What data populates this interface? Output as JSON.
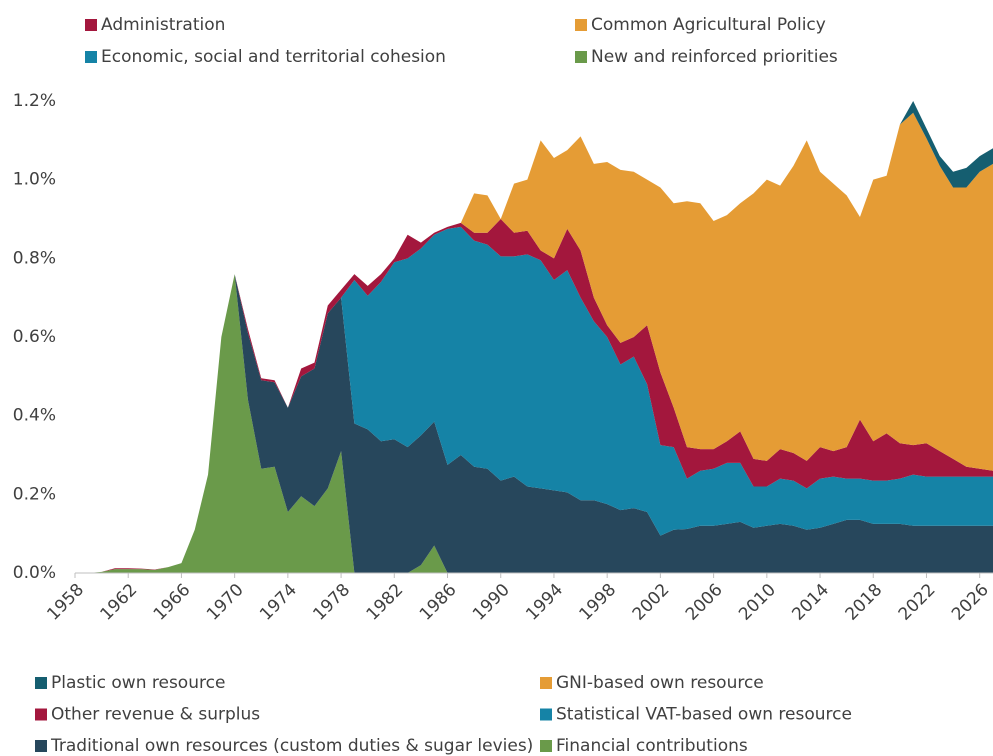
{
  "chart_data": {
    "type": "stacked_area",
    "top_legend": [
      {
        "name": "Administration",
        "color": "#a3173d"
      },
      {
        "name": "Common Agricultural Policy",
        "color": "#e59c35"
      },
      {
        "name": "Economic, social and territorial cohesion",
        "color": "#1583a6"
      },
      {
        "name": "New and reinforced priorities",
        "color": "#6a9a4a"
      }
    ],
    "x": [
      1958,
      1959,
      1960,
      1961,
      1962,
      1963,
      1964,
      1965,
      1966,
      1967,
      1968,
      1969,
      1970,
      1971,
      1972,
      1973,
      1974,
      1975,
      1976,
      1977,
      1978,
      1979,
      1980,
      1981,
      1982,
      1983,
      1984,
      1985,
      1986,
      1987,
      1988,
      1989,
      1990,
      1991,
      1992,
      1993,
      1994,
      1995,
      1996,
      1997,
      1998,
      1999,
      2000,
      2001,
      2002,
      2003,
      2004,
      2005,
      2006,
      2007,
      2008,
      2009,
      2010,
      2011,
      2012,
      2013,
      2014,
      2015,
      2016,
      2017,
      2018,
      2019,
      2020,
      2021,
      2022,
      2023,
      2024,
      2025,
      2026,
      2027
    ],
    "xlim": [
      1958,
      2027
    ],
    "xticks": [
      1958,
      1962,
      1966,
      1970,
      1974,
      1978,
      1982,
      1986,
      1990,
      1994,
      1998,
      2002,
      2006,
      2010,
      2014,
      2018,
      2022,
      2026
    ],
    "ylim": [
      0,
      1.2
    ],
    "yticks": [
      {
        "value": 0,
        "label": "0.0%"
      },
      {
        "value": 0.2,
        "label": "0.2%"
      },
      {
        "value": 0.4,
        "label": "0.4%"
      },
      {
        "value": 0.6,
        "label": "0.6%"
      },
      {
        "value": 0.8,
        "label": "0.8%"
      },
      {
        "value": 1.0,
        "label": "1.0%"
      },
      {
        "value": 1.2,
        "label": "1.2%"
      }
    ],
    "series": [
      {
        "name": "Financial contributions",
        "color": "#6a9a4a",
        "values": [
          0,
          0,
          0.003,
          0.01,
          0.01,
          0.01,
          0.008,
          0.015,
          0.025,
          0.11,
          0.25,
          0.6,
          0.76,
          0.44,
          0.265,
          0.27,
          0.155,
          0.195,
          0.17,
          0.215,
          0.31,
          0,
          0,
          0,
          0,
          0,
          0.02,
          0.07,
          0,
          0,
          0,
          0,
          0,
          0,
          0,
          0,
          0,
          0,
          0,
          0,
          0,
          0,
          0,
          0,
          0,
          0,
          0,
          0,
          0,
          0,
          0,
          0,
          0,
          0,
          0,
          0,
          0,
          0,
          0,
          0,
          0,
          0,
          0,
          0,
          0,
          0,
          0,
          0,
          0,
          0
        ]
      },
      {
        "name": "Traditional own resources (custom duties & sugar levies)",
        "color": "#27475c",
        "values": [
          0,
          0,
          0,
          0,
          0,
          0,
          0,
          0,
          0,
          0,
          0,
          0,
          0,
          0.17,
          0.225,
          0.215,
          0.265,
          0.305,
          0.35,
          0.445,
          0.39,
          0.38,
          0.365,
          0.335,
          0.34,
          0.32,
          0.33,
          0.315,
          0.275,
          0.3,
          0.27,
          0.265,
          0.235,
          0.245,
          0.22,
          0.215,
          0.21,
          0.205,
          0.185,
          0.185,
          0.175,
          0.16,
          0.165,
          0.155,
          0.095,
          0.11,
          0.112,
          0.12,
          0.12,
          0.125,
          0.13,
          0.115,
          0.12,
          0.125,
          0.12,
          0.11,
          0.115,
          0.125,
          0.135,
          0.135,
          0.125,
          0.125,
          0.125,
          0.12,
          0.12,
          0.12,
          0.12,
          0.12,
          0.12,
          0.12
        ]
      },
      {
        "name": "Statistical VAT-based own resource",
        "color": "#1583a6",
        "values": [
          0,
          0,
          0,
          0,
          0,
          0,
          0,
          0,
          0,
          0,
          0,
          0,
          0,
          0,
          0,
          0,
          0,
          0,
          0,
          0,
          0,
          0.365,
          0.34,
          0.405,
          0.45,
          0.48,
          0.475,
          0.475,
          0.6,
          0.58,
          0.575,
          0.57,
          0.57,
          0.56,
          0.59,
          0.58,
          0.535,
          0.565,
          0.515,
          0.455,
          0.425,
          0.37,
          0.385,
          0.325,
          0.23,
          0.21,
          0.128,
          0.14,
          0.145,
          0.155,
          0.15,
          0.105,
          0.1,
          0.115,
          0.115,
          0.105,
          0.125,
          0.12,
          0.105,
          0.105,
          0.11,
          0.11,
          0.115,
          0.13,
          0.125,
          0.125,
          0.125,
          0.125,
          0.125,
          0.125
        ]
      },
      {
        "name": "Other revenue & surplus",
        "color": "#a3173d",
        "values": [
          0,
          0,
          0,
          0.002,
          0.002,
          0.001,
          0.001,
          0,
          0,
          0,
          0,
          0,
          0,
          0.01,
          0.005,
          0.005,
          0,
          0.02,
          0.015,
          0.02,
          0.02,
          0.015,
          0.025,
          0.02,
          0.01,
          0.06,
          0.015,
          0.005,
          0.005,
          0.01,
          0.02,
          0.03,
          0.095,
          0.06,
          0.06,
          0.025,
          0.055,
          0.105,
          0.12,
          0.06,
          0.03,
          0.055,
          0.05,
          0.15,
          0.185,
          0.1,
          0.08,
          0.055,
          0.05,
          0.055,
          0.08,
          0.07,
          0.065,
          0.075,
          0.07,
          0.07,
          0.08,
          0.065,
          0.08,
          0.15,
          0.1,
          0.12,
          0.09,
          0.075,
          0.085,
          0.065,
          0.045,
          0.025,
          0.02,
          0.015
        ]
      },
      {
        "name": "GNI-based own resource",
        "color": "#e59c35",
        "values": [
          0,
          0,
          0,
          0,
          0,
          0,
          0,
          0,
          0,
          0,
          0,
          0,
          0,
          0,
          0,
          0,
          0,
          0,
          0,
          0,
          0,
          0,
          0,
          0,
          0,
          0,
          0,
          0,
          0,
          0,
          0.1,
          0.095,
          0,
          0.125,
          0.13,
          0.28,
          0.255,
          0.2,
          0.29,
          0.34,
          0.415,
          0.44,
          0.42,
          0.37,
          0.47,
          0.52,
          0.625,
          0.625,
          0.58,
          0.575,
          0.58,
          0.675,
          0.715,
          0.67,
          0.73,
          0.815,
          0.7,
          0.68,
          0.64,
          0.515,
          0.665,
          0.655,
          0.81,
          0.845,
          0.775,
          0.725,
          0.69,
          0.71,
          0.755,
          0.78
        ]
      },
      {
        "name": "Plastic own resource",
        "color": "#155e70",
        "values": [
          0,
          0,
          0,
          0,
          0,
          0,
          0,
          0,
          0,
          0,
          0,
          0,
          0,
          0,
          0,
          0,
          0,
          0,
          0,
          0,
          0,
          0,
          0,
          0,
          0,
          0,
          0,
          0,
          0,
          0,
          0,
          0,
          0,
          0,
          0,
          0,
          0,
          0,
          0,
          0,
          0,
          0,
          0,
          0,
          0,
          0,
          0,
          0,
          0,
          0,
          0,
          0,
          0,
          0,
          0,
          0,
          0,
          0,
          0,
          0,
          0,
          0,
          0,
          0.03,
          0.025,
          0.025,
          0.04,
          0.05,
          0.04,
          0.04
        ]
      }
    ]
  }
}
